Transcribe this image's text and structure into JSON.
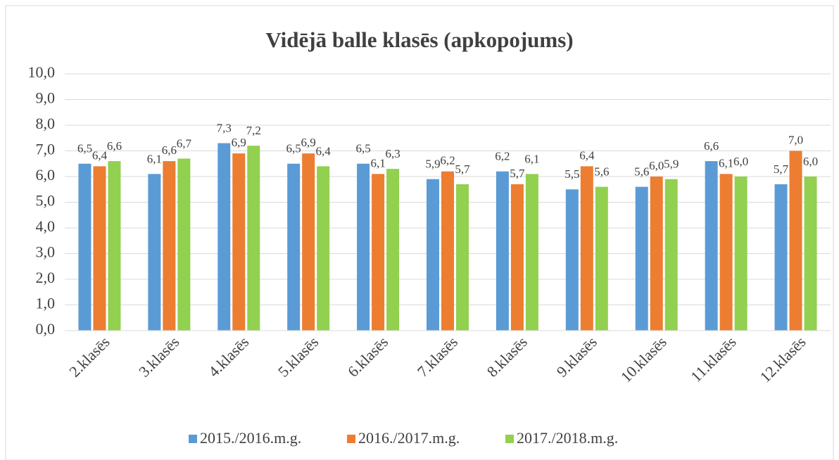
{
  "chart_data": {
    "type": "bar",
    "title": "Vidējā balle klasēs (apkopojums)",
    "categories": [
      "2.klasēs",
      "3.klasēs",
      "4.klasēs",
      "5.klasēs",
      "6.klasēs",
      "7.klasēs",
      "8.klasēs",
      "9.klasēs",
      "10.klasēs",
      "11.klasēs",
      "12.klasēs"
    ],
    "series": [
      {
        "name": "2015./2016.m.g.",
        "color": "#5b9bd5",
        "values": [
          6.5,
          6.1,
          7.3,
          6.5,
          6.5,
          5.9,
          6.2,
          5.5,
          5.6,
          6.6,
          5.7
        ],
        "value_labels": [
          "6,5",
          "6,1",
          "7,3",
          "6,5",
          "6,5",
          "5,9",
          "6,2",
          "5,5",
          "5,6",
          "6,6",
          "5,7"
        ]
      },
      {
        "name": "2016./2017.m.g.",
        "color": "#ed7d31",
        "values": [
          6.4,
          6.6,
          6.9,
          6.9,
          6.1,
          6.2,
          5.7,
          6.4,
          6.0,
          6.1,
          7.0
        ],
        "value_labels": [
          "6,4",
          "6,6",
          "6,9",
          "6,9",
          "6,1",
          "6,2",
          "5,7",
          "6,4",
          "6,0",
          "6,1",
          "7,0"
        ]
      },
      {
        "name": "2017./2018.m.g.",
        "color": "#92d050",
        "values": [
          6.6,
          6.7,
          7.2,
          6.4,
          6.3,
          5.7,
          6.1,
          5.6,
          5.9,
          6.0,
          6.0
        ],
        "value_labels": [
          "6,6",
          "6,7",
          "7,2",
          "6,4",
          "6,3",
          "5,7",
          "6,1",
          "5,6",
          "5,9",
          "6,0",
          "6,0"
        ]
      }
    ],
    "ylim": [
      0,
      10
    ],
    "yticks": [
      {
        "value": 0,
        "label": "0,0"
      },
      {
        "value": 1,
        "label": "1,0"
      },
      {
        "value": 2,
        "label": "2,0"
      },
      {
        "value": 3,
        "label": "3,0"
      },
      {
        "value": 4,
        "label": "4,0"
      },
      {
        "value": 5,
        "label": "5,0"
      },
      {
        "value": 6,
        "label": "6,0"
      },
      {
        "value": 7,
        "label": "7,0"
      },
      {
        "value": 8,
        "label": "8,0"
      },
      {
        "value": 9,
        "label": "9,0"
      },
      {
        "value": 10,
        "label": "10,0"
      }
    ],
    "grid": true,
    "legend": "bottom"
  }
}
